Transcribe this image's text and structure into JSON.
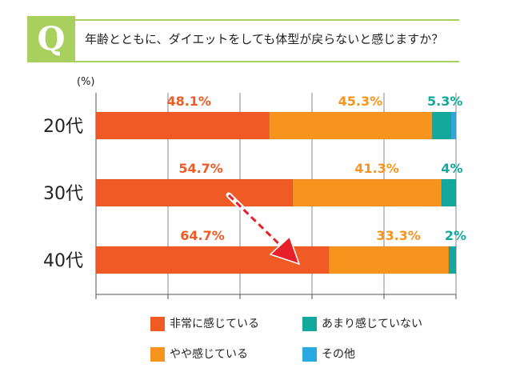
{
  "question": {
    "badge": "Q",
    "text": "年齢とともに、ダイエットをしても体型が戻らないと感じますか？"
  },
  "colors": {
    "accent_green": "#a9cf5f",
    "strongly": "#f05a24",
    "somewhat": "#f7941d",
    "not_much": "#13a89e",
    "other": "#29a9e0",
    "arrow": "#e8202a"
  },
  "legend": [
    {
      "label": "非常に感じている",
      "color": "#f05a24"
    },
    {
      "label": "あまり感じていない",
      "color": "#13a89e"
    },
    {
      "label": "やや感じている",
      "color": "#f7941d"
    },
    {
      "label": "その他",
      "color": "#29a9e0"
    }
  ],
  "chart_data": {
    "type": "bar",
    "orientation": "horizontal",
    "stacked": true,
    "unit_label": "(%)",
    "categories": [
      "20代",
      "30代",
      "40代"
    ],
    "xlim": [
      0,
      100
    ],
    "series": [
      {
        "name": "非常に感じている",
        "values": [
          48.1,
          54.7,
          64.7
        ],
        "labels": [
          "48.1%",
          "54.7%",
          "64.7%"
        ],
        "color": "#f05a24",
        "label_color": "#f05a24"
      },
      {
        "name": "やや感じている",
        "values": [
          45.3,
          41.3,
          33.3
        ],
        "labels": [
          "45.3%",
          "41.3%",
          "33.3%"
        ],
        "color": "#f7941d",
        "label_color": "#f7941d"
      },
      {
        "name": "あまり感じていない",
        "values": [
          5.3,
          4,
          2
        ],
        "labels": [
          "5.3%",
          "4%",
          "2%"
        ],
        "color": "#13a89e",
        "label_color": "#13a89e"
      },
      {
        "name": "その他",
        "values": [
          1.3,
          0,
          0
        ],
        "labels": [
          "",
          "",
          ""
        ],
        "color": "#29a9e0",
        "label_color": "#29a9e0"
      }
    ],
    "grid": "vertical",
    "annotation": "red dashed arrow pointing down-right from the 30代 bar toward the 40代 bar"
  }
}
